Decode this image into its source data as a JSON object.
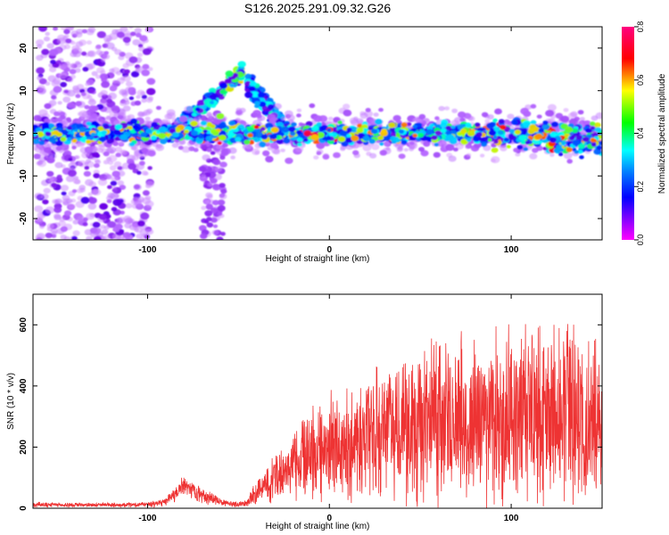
{
  "title": "S126.2025.291.09.32.G26",
  "chart_data": [
    {
      "type": "heatmap",
      "name": "spectrogram",
      "xlabel": "Height of straight line (km)",
      "ylabel": "Frequency (Hz)",
      "xlim": [
        -163,
        150
      ],
      "ylim": [
        -25,
        25
      ],
      "xticks": [
        -100,
        0,
        100
      ],
      "yticks": [
        -20,
        -10,
        0,
        10,
        20
      ],
      "colorbar": {
        "label": "Normalized spectral amplitude",
        "range": [
          0,
          0.8
        ],
        "ticks": [
          "0.0",
          "0.2",
          "0.4",
          "0.6",
          "0.8"
        ],
        "colormap": [
          "#ff00ff",
          "#0000ff",
          "#00ffff",
          "#00ff00",
          "#ffff00",
          "#ff0000",
          "#ff0080"
        ]
      },
      "features": [
        {
          "name": "main band",
          "x_range": [
            -163,
            150
          ],
          "freq_center": 0,
          "peak_amplitude_x": -12
        },
        {
          "name": "oblique streak",
          "x_range": [
            -85,
            -45
          ],
          "freq_range": [
            0,
            15
          ]
        },
        {
          "name": "diffuse scatter",
          "x_range": [
            -160,
            -100
          ],
          "freq_range": [
            -25,
            25
          ]
        }
      ]
    },
    {
      "type": "line",
      "name": "snr",
      "xlabel": "Height of straight line (km)",
      "ylabel": "SNR (10 * v/v)",
      "xlim": [
        -163,
        150
      ],
      "ylim": [
        0,
        700
      ],
      "xticks": [
        -100,
        0,
        100
      ],
      "yticks": [
        0,
        200,
        400,
        600
      ],
      "color": "#ee3333",
      "envelope": {
        "x": [
          -163,
          -130,
          -100,
          -90,
          -85,
          -80,
          -75,
          -70,
          -65,
          -60,
          -55,
          -50,
          -45,
          -40,
          -30,
          -20,
          -10,
          0,
          10,
          20,
          30,
          40,
          50,
          60,
          70,
          80,
          90,
          100,
          110,
          120,
          130,
          140,
          150
        ],
        "mean": [
          12,
          10,
          12,
          20,
          45,
          70,
          55,
          40,
          35,
          20,
          15,
          12,
          20,
          50,
          100,
          140,
          180,
          200,
          210,
          230,
          250,
          260,
          270,
          280,
          290,
          290,
          300,
          290,
          300,
          290,
          300,
          280,
          280
        ],
        "spread": [
          10,
          8,
          10,
          18,
          30,
          40,
          35,
          30,
          25,
          15,
          10,
          10,
          20,
          50,
          90,
          130,
          170,
          200,
          220,
          230,
          250,
          280,
          300,
          320,
          330,
          320,
          330,
          320,
          340,
          360,
          340,
          330,
          320
        ]
      }
    }
  ]
}
